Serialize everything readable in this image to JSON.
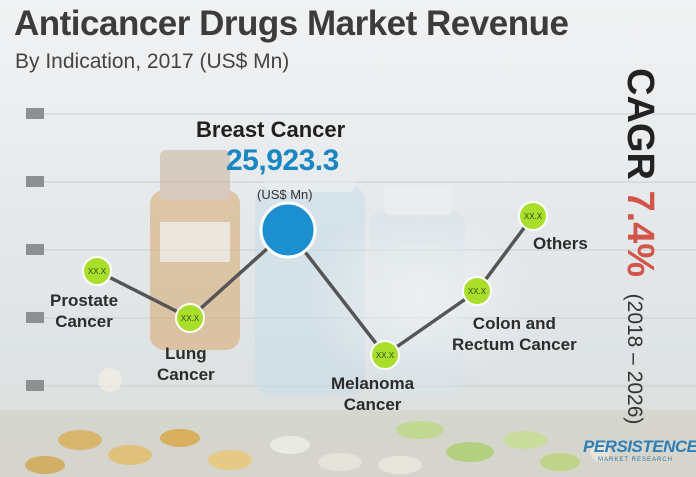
{
  "title": "Anticancer Drugs Market Revenue",
  "subtitle": "By Indication, 2017 (US$ Mn)",
  "cagr": {
    "label": "CAGR",
    "value": "7.4%",
    "period": "(2018 – 2026)"
  },
  "highlight": {
    "name": "Breast Cancer",
    "value": "25,923.3",
    "unit": "(US$ Mn)"
  },
  "placeholder_value": "XX.X",
  "logo": {
    "main": "PERSISTENCE",
    "sub": "MARKET RESEARCH"
  },
  "colors": {
    "line": "#555555",
    "node_green": "#a9df2a",
    "highlight_blue": "#1b8fd0",
    "cagr_accent": "#d2554a"
  },
  "chart_data": {
    "type": "line",
    "categories": [
      "Prostate Cancer",
      "Lung Cancer",
      "Breast Cancer",
      "Melanoma Cancer",
      "Colon and Rectum Cancer",
      "Others"
    ],
    "labels": [
      [
        "Prostate",
        "Cancer"
      ],
      [
        "Lung",
        "Cancer"
      ],
      [
        "Breast Cancer"
      ],
      [
        "Melanoma",
        "Cancer"
      ],
      [
        "Colon and",
        "Rectum Cancer"
      ],
      [
        "Others"
      ]
    ],
    "values": [
      "XX.X",
      "XX.X",
      "25,923.3",
      "XX.X",
      "XX.X",
      "XX.X"
    ],
    "unit": "US$ Mn",
    "highlighted": "Breast Cancer"
  }
}
